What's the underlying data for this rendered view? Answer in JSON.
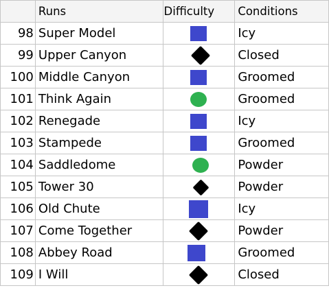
{
  "headers": {
    "runs": "Runs",
    "difficulty": "Difficulty",
    "conditions": "Conditions"
  },
  "rows": [
    {
      "num": "98",
      "run": "Super Model",
      "difficulty": "blue-square",
      "condition": "Icy"
    },
    {
      "num": "99",
      "run": "Upper Canyon",
      "difficulty": "black-diamond",
      "condition": "Closed"
    },
    {
      "num": "100",
      "run": "Middle Canyon",
      "difficulty": "blue-square",
      "condition": "Groomed"
    },
    {
      "num": "101",
      "run": "Think Again",
      "difficulty": "green-circle",
      "condition": "Groomed"
    },
    {
      "num": "102",
      "run": "Renegade",
      "difficulty": "blue-square",
      "condition": "Icy"
    },
    {
      "num": "103",
      "run": "Stampede",
      "difficulty": "blue-square",
      "condition": "Groomed"
    },
    {
      "num": "104",
      "run": "Saddledome",
      "difficulty": "green-circle",
      "condition": "Powder"
    },
    {
      "num": "105",
      "run": "Tower 30",
      "difficulty": "black-diamond",
      "condition": "Powder"
    },
    {
      "num": "106",
      "run": "Old Chute",
      "difficulty": "blue-square",
      "condition": "Icy"
    },
    {
      "num": "107",
      "run": "Come Together",
      "difficulty": "black-diamond",
      "condition": "Powder"
    },
    {
      "num": "108",
      "run": "Abbey Road",
      "difficulty": "blue-square",
      "condition": "Groomed"
    },
    {
      "num": "109",
      "run": "I Will",
      "difficulty": "black-diamond",
      "condition": "Closed"
    }
  ],
  "colors": {
    "blue": "#3e47cc",
    "green": "#2eb150",
    "black": "#000000",
    "gridline": "#c6c6c6",
    "header_bg": "#f4f4f4"
  }
}
